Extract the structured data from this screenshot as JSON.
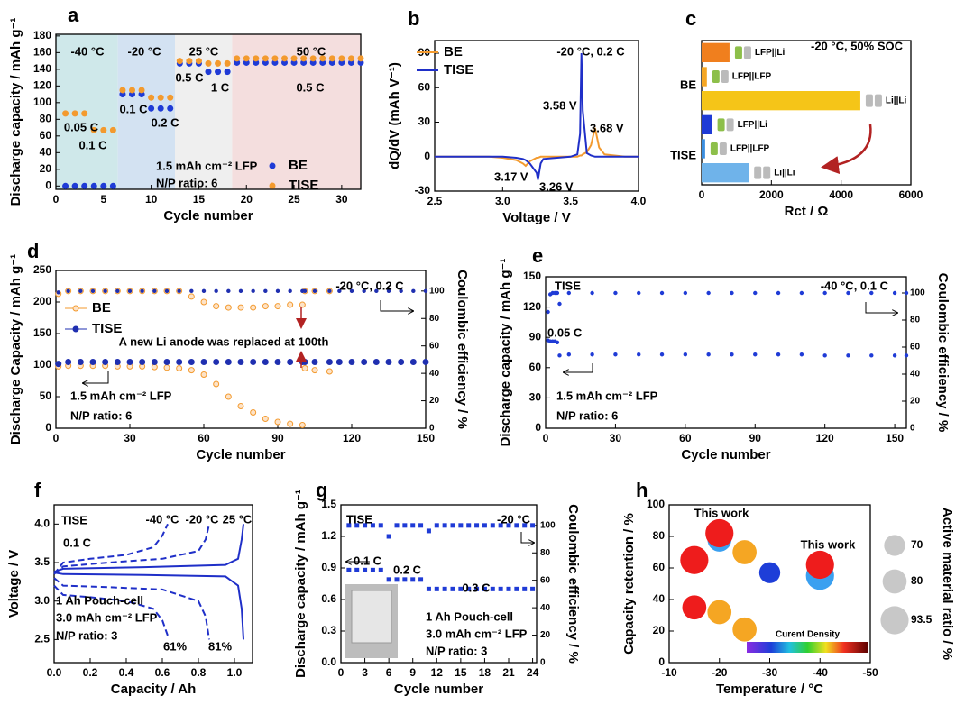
{
  "chart_data": [
    {
      "type": "scatter",
      "panel": "a",
      "xlabel": "Cycle number",
      "ylabel": "Discharge capacity / mAh g⁻¹",
      "xlim": [
        0,
        32
      ],
      "xticks": [
        0,
        5,
        10,
        15,
        20,
        25,
        30
      ],
      "ylim": [
        -4,
        182
      ],
      "yticks": [
        0,
        20,
        40,
        60,
        80,
        100,
        120,
        140,
        160,
        180
      ],
      "x": [
        1,
        2,
        3,
        4,
        5,
        6,
        7,
        8,
        9,
        10,
        11,
        12,
        13,
        14,
        15,
        16,
        17,
        18,
        19,
        20,
        21,
        22,
        23,
        24,
        25,
        26,
        27,
        28,
        29,
        30,
        31,
        32
      ],
      "series": [
        {
          "name": "BE",
          "color": "#1f3bd6",
          "marker": "circle",
          "values": [
            0,
            0,
            0,
            0,
            0,
            0,
            110,
            110,
            110,
            93,
            93,
            93,
            147,
            147,
            147,
            137,
            137,
            137,
            148,
            148,
            148,
            148,
            148,
            148,
            148,
            148,
            148,
            148,
            148,
            148,
            148,
            148
          ]
        },
        {
          "name": "TISE",
          "color": "#f39a2e",
          "marker": "circle",
          "values": [
            87,
            87,
            87,
            67,
            67,
            67,
            115,
            115,
            115,
            106,
            106,
            106,
            150,
            150,
            150,
            147,
            147,
            147,
            153,
            153,
            153,
            153,
            153,
            153,
            153,
            153,
            153,
            153,
            153,
            153,
            153,
            153
          ]
        }
      ],
      "annotations": [
        "-40 °C",
        "-20 °C",
        "25 °C",
        "50 °C",
        "0.05 C",
        "0.1 C",
        "0.1 C",
        "0.2 C",
        "0.5 C",
        "1 C",
        "0.5 C",
        "1.5 mAh cm⁻² LFP",
        "N/P ratio: 6"
      ]
    },
    {
      "type": "line",
      "panel": "b",
      "xlabel": "Voltage / V",
      "ylabel": "dQ/dV (mAh V⁻¹)",
      "xlim": [
        2.5,
        4.0
      ],
      "xticks": [
        2.5,
        {
          "value": 3,
          "label": "3.0"
        },
        3.5,
        {
          "value": 4,
          "label": "4.0"
        }
      ],
      "ylim": [
        -30,
        101
      ],
      "yticks": [
        -30,
        0,
        30,
        60,
        90
      ],
      "x": [
        2.5,
        2.9,
        3.0,
        3.1,
        3.15,
        3.17,
        3.2,
        3.25,
        3.26,
        3.28,
        3.3,
        3.5,
        3.55,
        3.57,
        3.58,
        3.59,
        3.62,
        3.65,
        3.68,
        3.71,
        3.75,
        3.9,
        4.0
      ],
      "series": [
        {
          "name": "BE",
          "color": "#f39a2e",
          "values": [
            0,
            0,
            -1,
            -3,
            -6,
            -8,
            -4,
            -1,
            -1,
            0,
            0,
            0,
            0,
            1,
            1,
            2,
            4,
            10,
            25,
            8,
            2,
            0,
            0
          ]
        },
        {
          "name": "TISE",
          "color": "#1f2fc8",
          "values": [
            0,
            0,
            0,
            -1,
            -2,
            -3,
            -6,
            -14,
            -20,
            -6,
            -2,
            0,
            2,
            20,
            90,
            40,
            3,
            1,
            0,
            0,
            0,
            0,
            0
          ]
        }
      ],
      "annotations": [
        "-20 °C, 0.2 C",
        "3.58 V",
        "3.68 V",
        "3.17 V",
        "3.26 V"
      ]
    },
    {
      "type": "bar",
      "panel": "c",
      "xlabel": "Rct / Ω",
      "title": "-20 °C, 50% SOC",
      "xlim": [
        0,
        6000
      ],
      "xticks": [
        0,
        2000,
        4000,
        6000
      ],
      "groups": [
        "BE",
        "TISE"
      ],
      "categories": [
        "LFP||Li",
        "LFP||LFP",
        "Li||Li",
        "LFP||Li",
        "LFP||LFP",
        "Li||Li"
      ],
      "values": [
        800,
        150,
        4550,
        300,
        100,
        1350
      ],
      "colors": [
        "#f07f1e",
        "#f5a623",
        "#f5c518",
        "#1f3bd6",
        "#3a8ee0",
        "#6fb3ea"
      ]
    },
    {
      "type": "scatter",
      "panel": "d",
      "xlabel": "Cycle number",
      "ylabel": "Discharge Capacity / mAh g⁻¹",
      "y2label": "Coulombic efficiency / %",
      "xlim": [
        0,
        150
      ],
      "xticks": [
        0,
        30,
        60,
        90,
        120,
        150
      ],
      "ylim": [
        0,
        250
      ],
      "yticks": [
        0,
        50,
        100,
        150,
        200,
        250
      ],
      "y2lim": [
        0,
        115
      ],
      "y2ticks": [
        0,
        20,
        40,
        60,
        80,
        100
      ],
      "x": [
        1,
        5,
        10,
        15,
        20,
        25,
        30,
        35,
        40,
        45,
        50,
        55,
        60,
        65,
        70,
        75,
        80,
        85,
        90,
        95,
        100,
        101,
        105,
        111,
        115,
        120,
        125,
        130,
        135,
        140,
        145,
        150
      ],
      "series": [
        {
          "name": "BE",
          "color": "#f39a2e",
          "marker": "open",
          "values": [
            98,
            99,
            99,
            99,
            99,
            98,
            98,
            98,
            97,
            96,
            95,
            92,
            85,
            70,
            50,
            35,
            25,
            15,
            10,
            7,
            5,
            95,
            92,
            90,
            null,
            null,
            null,
            null,
            null,
            null,
            null,
            null
          ]
        },
        {
          "name": "TISE",
          "color": "#1f2fb0",
          "marker": "circle",
          "values": [
            102,
            105,
            105,
            105,
            105,
            105,
            105,
            105,
            105,
            105,
            105,
            105,
            105,
            105,
            105,
            105,
            105,
            105,
            105,
            105,
            105,
            105,
            105,
            105,
            105,
            105,
            105,
            105,
            105,
            105,
            105,
            105
          ]
        },
        {
          "color": "#f39a2e",
          "marker": "open",
          "axis": "y2",
          "values": [
            98,
            100,
            100,
            100,
            100,
            100,
            100,
            100,
            100,
            100,
            100,
            96,
            92,
            89,
            88,
            88,
            88,
            89,
            89,
            90,
            90,
            100,
            100,
            100,
            null,
            null,
            null,
            null,
            null,
            null,
            null,
            null
          ]
        },
        {
          "color": "#1f2fb0",
          "marker": "small",
          "axis": "y2",
          "values": [
            99,
            100,
            100,
            100,
            100,
            100,
            100,
            100,
            100,
            100,
            100,
            100,
            100,
            100,
            100,
            100,
            100,
            100,
            100,
            100,
            100,
            100,
            100,
            100,
            100,
            100,
            100,
            100,
            100,
            100,
            100,
            100
          ]
        }
      ],
      "annotations": [
        "-20 °C, 0.2 C",
        "A new Li anode was replaced at 100th",
        "1.5 mAh cm⁻² LFP",
        "N/P ratio: 6"
      ]
    },
    {
      "type": "scatter",
      "panel": "e",
      "xlabel": "Cycle number",
      "ylabel": "Discharge capacity / mAh g⁻¹",
      "y2label": "Coulombic efficiency / %",
      "xlim": [
        0,
        155
      ],
      "xticks": [
        0,
        30,
        60,
        90,
        120,
        150
      ],
      "ylim": [
        0,
        150
      ],
      "yticks": [
        0,
        30,
        60,
        90,
        120,
        150
      ],
      "y2lim": [
        0,
        112
      ],
      "y2ticks": [
        0,
        20,
        40,
        60,
        80,
        100
      ],
      "x": [
        1,
        2,
        3,
        4,
        5,
        6,
        10,
        20,
        30,
        40,
        50,
        60,
        70,
        80,
        90,
        100,
        110,
        120,
        130,
        140,
        150,
        155
      ],
      "series": [
        {
          "color": "#1f3bd6",
          "marker": "small",
          "values": [
            87,
            86,
            86,
            86,
            85,
            72,
            73,
            73,
            73,
            73,
            73,
            73,
            73,
            73,
            73,
            73,
            73,
            72,
            72,
            72,
            72,
            72
          ]
        },
        {
          "color": "#1f3bd6",
          "marker": "small",
          "axis": "y2",
          "values": [
            86,
            99,
            100,
            100,
            100,
            92,
            100,
            100,
            100,
            100,
            100,
            100,
            100,
            100,
            100,
            100,
            100,
            100,
            100,
            100,
            100,
            100
          ]
        }
      ],
      "annotations": [
        "TISE",
        "-40 °C, 0.1 C",
        "0.05 C",
        "1.5 mAh cm⁻² LFP",
        "N/P ratio: 6"
      ]
    },
    {
      "type": "line",
      "panel": "f",
      "xlabel": "Capacity / Ah",
      "ylabel": "Voltage / V",
      "xlim": [
        0,
        1.1
      ],
      "xticks": [
        {
          "value": 0,
          "label": "0.0"
        },
        0.2,
        0.4,
        0.6,
        0.8,
        {
          "value": 1,
          "label": "1.0"
        }
      ],
      "ylim": [
        2.2,
        4.25
      ],
      "yticks": [
        2.5,
        {
          "value": 3,
          "label": "3.0"
        },
        3.5,
        {
          "value": 4,
          "label": "4.0"
        }
      ],
      "series": [
        {
          "name": "-40 °C",
          "color": "#1f2fc8",
          "dash": true,
          "x": [
            0,
            0.05,
            0.2,
            0.4,
            0.55,
            0.6,
            0.63,
            null,
            0,
            0.05,
            0.2,
            0.4,
            0.55,
            0.6,
            0.63
          ],
          "values": [
            3.35,
            3.5,
            3.55,
            3.6,
            3.7,
            3.85,
            4.0,
            null,
            3.2,
            3.08,
            3.05,
            3.0,
            2.9,
            2.75,
            2.55
          ]
        },
        {
          "name": "-20 °C",
          "color": "#1f2fc8",
          "dash": true,
          "x": [
            0,
            0.05,
            0.3,
            0.6,
            0.8,
            0.84,
            0.86,
            null,
            0,
            0.05,
            0.3,
            0.6,
            0.8,
            0.84,
            0.86
          ],
          "values": [
            3.35,
            3.45,
            3.5,
            3.55,
            3.65,
            3.8,
            4.0,
            null,
            3.3,
            3.2,
            3.18,
            3.15,
            3.0,
            2.8,
            2.5
          ]
        },
        {
          "name": "25 °C",
          "color": "#1f2fc8",
          "x": [
            0,
            0.05,
            0.5,
            0.95,
            1.02,
            1.04,
            1.05,
            null,
            0,
            0.05,
            0.5,
            0.95,
            1.02,
            1.04,
            1.05
          ],
          "values": [
            3.38,
            3.42,
            3.44,
            3.47,
            3.55,
            3.8,
            4.0,
            null,
            3.37,
            3.35,
            3.34,
            3.32,
            3.2,
            2.9,
            2.5
          ]
        }
      ],
      "annotations": [
        "TISE",
        "0.1 C",
        "1 Ah Pouch-cell",
        "3.0 mAh cm⁻² LFP",
        "N/P ratio: 3",
        "61%",
        "81%"
      ]
    },
    {
      "type": "scatter",
      "panel": "g",
      "xlabel": "Cycle number",
      "ylabel": "Discharge capacity / mAh g⁻¹",
      "y2label": "Coulombic efficiency / %",
      "xlim": [
        0,
        24.5
      ],
      "xticks": [
        0,
        3,
        6,
        9,
        12,
        15,
        18,
        21,
        24
      ],
      "ylim": [
        0,
        1.5
      ],
      "yticks": [
        {
          "value": 0,
          "label": "0.0"
        },
        0.3,
        0.6,
        0.9,
        1.2,
        1.5
      ],
      "y2lim": [
        0,
        115
      ],
      "y2ticks": [
        0,
        20,
        40,
        60,
        80,
        100
      ],
      "x": [
        1,
        2,
        3,
        4,
        5,
        6,
        7,
        8,
        9,
        10,
        11,
        12,
        13,
        14,
        15,
        16,
        17,
        18,
        19,
        20,
        21,
        22,
        23,
        24
      ],
      "series": [
        {
          "color": "#1f3bd6",
          "marker": "square",
          "values": [
            0.88,
            0.88,
            0.88,
            0.88,
            0.88,
            0.79,
            0.79,
            0.79,
            0.79,
            0.79,
            0.7,
            0.7,
            0.7,
            0.7,
            0.7,
            0.7,
            0.7,
            0.7,
            0.7,
            0.7,
            0.7,
            0.7,
            0.7,
            0.7
          ]
        },
        {
          "color": "#1f3bd6",
          "marker": "square",
          "axis": "y2",
          "values": [
            100,
            100,
            100,
            100,
            100,
            92,
            100,
            100,
            100,
            100,
            96,
            100,
            100,
            100,
            100,
            100,
            100,
            100,
            100,
            100,
            100,
            100,
            100,
            100
          ]
        }
      ],
      "annotations": [
        "TISE",
        "-20 °C",
        "0.1 C",
        "0.2 C",
        "0.3 C",
        "1 Ah Pouch-cell",
        "3.0 mAh cm⁻² LFP",
        "N/P ratio: 3"
      ]
    },
    {
      "type": "bubble",
      "panel": "h",
      "xlabel": "Temperature / °C",
      "ylabel": "Capacity retention / %",
      "y2label": "Active material ratio / %",
      "xlim": [
        -10,
        -50
      ],
      "xticks": [
        -10,
        -20,
        -30,
        -40,
        -50
      ],
      "ylim": [
        0,
        100
      ],
      "yticks": [
        0,
        20,
        40,
        60,
        80,
        100
      ],
      "x": [
        -20,
        -20,
        -25,
        -30,
        -15,
        -40,
        -40,
        -15,
        -20,
        -25
      ],
      "values": [
        78,
        82,
        70,
        57,
        65,
        55,
        62,
        35,
        32,
        21
      ],
      "sizes": [
        80,
        93.5,
        80,
        70,
        93.5,
        93.5,
        93.5,
        80,
        80,
        80
      ],
      "colors": [
        "#3aa0f0",
        "#ee1c1c",
        "#f5a623",
        "#1e3ed8",
        "#ee1c1c",
        "#3aa0f0",
        "#ee1c1c",
        "#ee1c1c",
        "#f5a623",
        "#f5a623"
      ],
      "size_legend": [
        70,
        80,
        93.5
      ],
      "colorbar_label": "Curent Density",
      "annotations": [
        "This work",
        "This work"
      ]
    }
  ]
}
